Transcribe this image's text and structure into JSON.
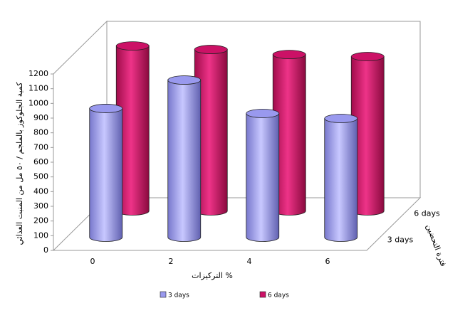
{
  "chart_data": {
    "type": "bar3d",
    "xlabel": "التركيزات %",
    "ylabel": "كمية الجلوكوز بالملجم / ٥٠ مل من المنبت الغذائي",
    "zlabel": "فترة التحضين",
    "categories": [
      "0",
      "2",
      "4",
      "6"
    ],
    "series": [
      {
        "name": "3 days",
        "color": "#9999ee",
        "values": [
          876,
          1069,
          842,
          808
        ]
      },
      {
        "name": "6 days",
        "color": "#cc1166",
        "values": [
          1122,
          1098,
          1064,
          1050
        ]
      }
    ],
    "ylim": [
      0,
      1200
    ],
    "yticks": [
      0,
      100,
      200,
      300,
      400,
      500,
      600,
      700,
      800,
      900,
      1000,
      1100,
      1200
    ]
  }
}
